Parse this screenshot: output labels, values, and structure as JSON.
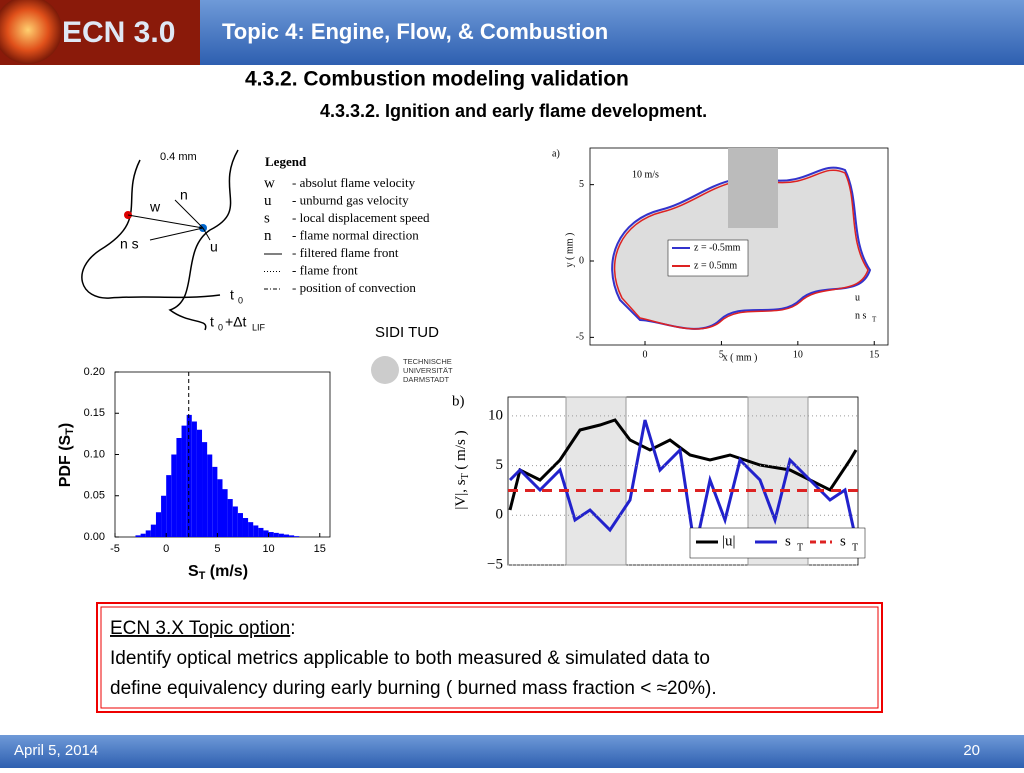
{
  "header": {
    "logo": "ECN 3.0",
    "title": "Topic 4:  Engine, Flow, & Combustion"
  },
  "headings": [
    "4.3.2.   Combustion modeling validation",
    "4.3.3.2.   Ignition and early flame development."
  ],
  "diagram": {
    "scale": "0.4 mm",
    "legend_title": "Legend",
    "legend": [
      "- absolut flame velocity",
      "- unburnd gas velocity",
      "- local displacement speed",
      "- flame normal direction",
      "- filtered flame front",
      "- flame front",
      "- position of convection"
    ],
    "symbols": [
      "w",
      "u",
      "s",
      "n"
    ],
    "labels": [
      "n",
      "w",
      "n s",
      "u",
      "t",
      "0",
      "t",
      "0",
      "+Δt",
      "LIF"
    ]
  },
  "source": {
    "name": "SIDI TUD",
    "logo": [
      "TECHNISCHE",
      "UNIVERSITÄT",
      "DARMSTADT"
    ]
  },
  "histogram": {
    "type": "histogram",
    "ylabel": [
      "PDF (S",
      "T",
      ")"
    ],
    "xlabel": [
      "S",
      "T",
      " (m/s)"
    ],
    "xlim": [
      -5,
      16
    ],
    "ylim": [
      0,
      0.2
    ],
    "xticks": [
      -5,
      0,
      5,
      10,
      15
    ],
    "yticks": [
      {
        "value": 0,
        "label": "0.00"
      },
      {
        "value": 0.05,
        "label": "0.05"
      },
      {
        "value": 0.1,
        "label": "0.10"
      },
      {
        "value": 0.15,
        "label": "0.15"
      },
      {
        "value": 0.2,
        "label": "0.20"
      }
    ],
    "color": "#0000ff",
    "mean": 2.2,
    "bins": [
      -3,
      -2.5,
      -2,
      -1.5,
      -1,
      -0.5,
      0,
      0.5,
      1,
      1.5,
      2,
      2.5,
      3,
      3.5,
      4,
      4.5,
      5,
      5.5,
      6,
      6.5,
      7,
      7.5,
      8,
      8.5,
      9,
      9.5,
      10,
      10.5,
      11,
      11.5,
      12,
      12.5,
      13
    ],
    "counts": [
      0.002,
      0.004,
      0.008,
      0.015,
      0.03,
      0.05,
      0.075,
      0.1,
      0.12,
      0.135,
      0.148,
      0.14,
      0.13,
      0.115,
      0.1,
      0.085,
      0.07,
      0.058,
      0.046,
      0.037,
      0.029,
      0.023,
      0.018,
      0.014,
      0.011,
      0.008,
      0.006,
      0.005,
      0.004,
      0.003,
      0.002,
      0.001
    ]
  },
  "plot_a": {
    "panel": "a)",
    "scale": "10 m/s",
    "ylabel": "y ( mm )",
    "xlabel": "x ( mm )",
    "xlim": [
      -3.6,
      15.9
    ],
    "ylim": [
      -5.5,
      7.4
    ],
    "xticks": [
      0,
      5,
      10,
      15
    ],
    "yticks": [
      -5,
      0,
      5
    ],
    "legend": [
      "z = -0.5mm",
      "z = 0.5mm"
    ],
    "legend2": [
      "u",
      "n s",
      "T"
    ]
  },
  "plot_b": {
    "panel": "b)",
    "ylabel": "|V|, s",
    "ylabel_sub": "T",
    "ylabel_end": " ( m/s )",
    "ylim": [
      -5,
      11.9
    ],
    "yticks": [
      10,
      5,
      0,
      {
        "value": -5,
        "label": "−5"
      }
    ],
    "threshold": 2.5,
    "legend": [
      "|u|",
      "s",
      "T",
      "s",
      "T"
    ]
  },
  "callout": {
    "heading": "ECN 3.X  Topic option",
    "colon": ":",
    "lines": [
      "Identify optical metrics applicable to both measured & simulated data to",
      "define equivalency during early burning ( burned mass fraction < ≈20%)."
    ]
  },
  "footer": {
    "date": "April 5, 2014",
    "page": "20"
  }
}
